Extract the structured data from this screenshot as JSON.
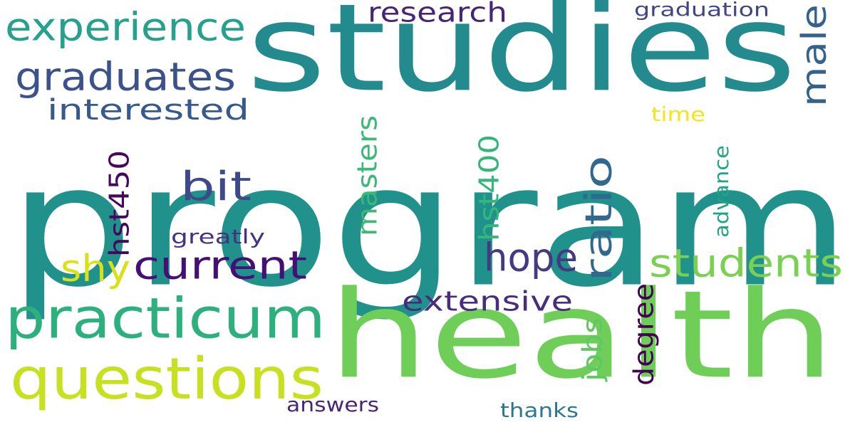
{
  "words": [
    {
      "text": "program",
      "color": "#21918c"
    },
    {
      "text": "studies",
      "color": "#238a8d"
    },
    {
      "text": "health",
      "color": "#6ece58"
    },
    {
      "text": "questions",
      "color": "#c7e020"
    },
    {
      "text": "practicum",
      "color": "#2cb17e"
    },
    {
      "text": "experience",
      "color": "#25a18e"
    },
    {
      "text": "graduates",
      "color": "#3b528b"
    },
    {
      "text": "interested",
      "color": "#38598c"
    },
    {
      "text": "students",
      "color": "#7ad151"
    },
    {
      "text": "ratio",
      "color": "#31688e"
    },
    {
      "text": "male",
      "color": "#33638d"
    },
    {
      "text": "hope",
      "color": "#443a83"
    },
    {
      "text": "current",
      "color": "#440f76"
    },
    {
      "text": "research",
      "color": "#482475"
    },
    {
      "text": "bit",
      "color": "#3e4989"
    },
    {
      "text": "shy",
      "color": "#d8e219"
    },
    {
      "text": "extensive",
      "color": "#472d7b"
    },
    {
      "text": "degree",
      "color": "#440154"
    },
    {
      "text": "jobs",
      "color": "#5ec962"
    },
    {
      "text": "masters",
      "color": "#3aba76"
    },
    {
      "text": "hst400",
      "color": "#35b779"
    },
    {
      "text": "hst450",
      "color": "#46085c"
    },
    {
      "text": "graduation",
      "color": "#414487"
    },
    {
      "text": "greatly",
      "color": "#46337e"
    },
    {
      "text": "advance",
      "color": "#20a486"
    },
    {
      "text": "time",
      "color": "#f1e51d"
    },
    {
      "text": "answers",
      "color": "#482677"
    },
    {
      "text": "thanks",
      "color": "#2a788e"
    }
  ]
}
